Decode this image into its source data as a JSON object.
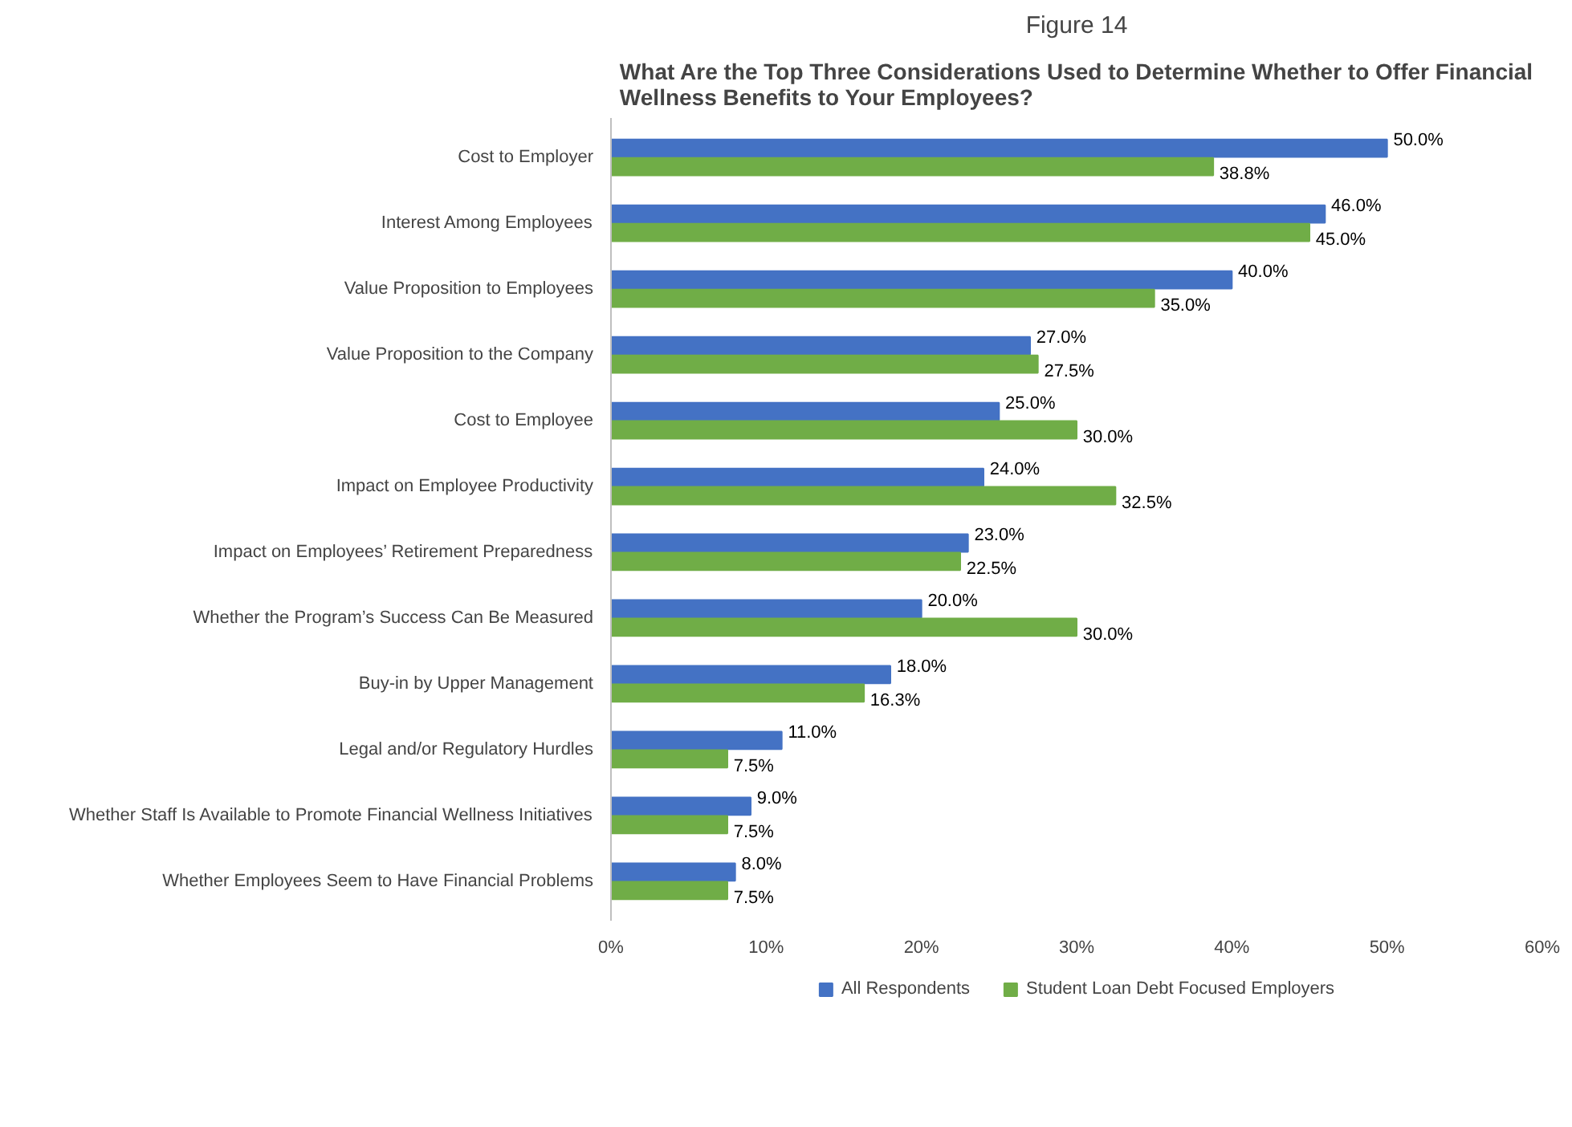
{
  "chart_data": {
    "type": "bar",
    "orientation": "horizontal",
    "title": "Figure 14",
    "subtitle": "What Are the Top Three Considerations Used to Determine Whether to Offer Financial Wellness Benefits to Your Employees?",
    "categories": [
      "Cost to Employer",
      "Interest Among Employees",
      "Value Proposition to Employees",
      "Value Proposition to the Company",
      "Cost to Employee",
      "Impact on Employee Productivity",
      "Impact on Employees’ Retirement Preparedness",
      "Whether the Program’s Success Can Be Measured",
      "Buy-in by Upper Management",
      "Legal and/or Regulatory Hurdles",
      "Whether Staff Is Available to Promote Financial Wellness Initiatives",
      "Whether Employees Seem to Have Financial Problems"
    ],
    "series": [
      {
        "name": "All Respondents",
        "color": "#4472c4",
        "values": [
          50.0,
          46.0,
          40.0,
          27.0,
          25.0,
          24.0,
          23.0,
          20.0,
          18.0,
          11.0,
          9.0,
          8.0
        ],
        "value_labels": [
          "50.0%",
          "46.0%",
          "40.0%",
          "27.0%",
          "25.0%",
          "24.0%",
          "23.0%",
          "20.0%",
          "18.0%",
          "11.0%",
          "9.0%",
          "8.0%"
        ]
      },
      {
        "name": "Student Loan Debt Focused Employers",
        "color": "#70ad47",
        "values": [
          38.8,
          45.0,
          35.0,
          27.5,
          30.0,
          32.5,
          22.5,
          30.0,
          16.3,
          7.5,
          7.5,
          7.5
        ],
        "value_labels": [
          "38.8%",
          "45.0%",
          "35.0%",
          "27.5%",
          "30.0%",
          "32.5%",
          "22.5%",
          "30.0%",
          "16.3%",
          "7.5%",
          "7.5%",
          "7.5%"
        ]
      }
    ],
    "xlim": [
      0,
      60
    ],
    "xticks": [
      {
        "value": 0,
        "label": "0%"
      },
      {
        "value": 10,
        "label": "10%"
      },
      {
        "value": 20,
        "label": "20%"
      },
      {
        "value": 30,
        "label": "30%"
      },
      {
        "value": 40,
        "label": "40%"
      },
      {
        "value": 50,
        "label": "50%"
      },
      {
        "value": 60,
        "label": "60%"
      }
    ],
    "grid": false,
    "legend": "bottom"
  }
}
